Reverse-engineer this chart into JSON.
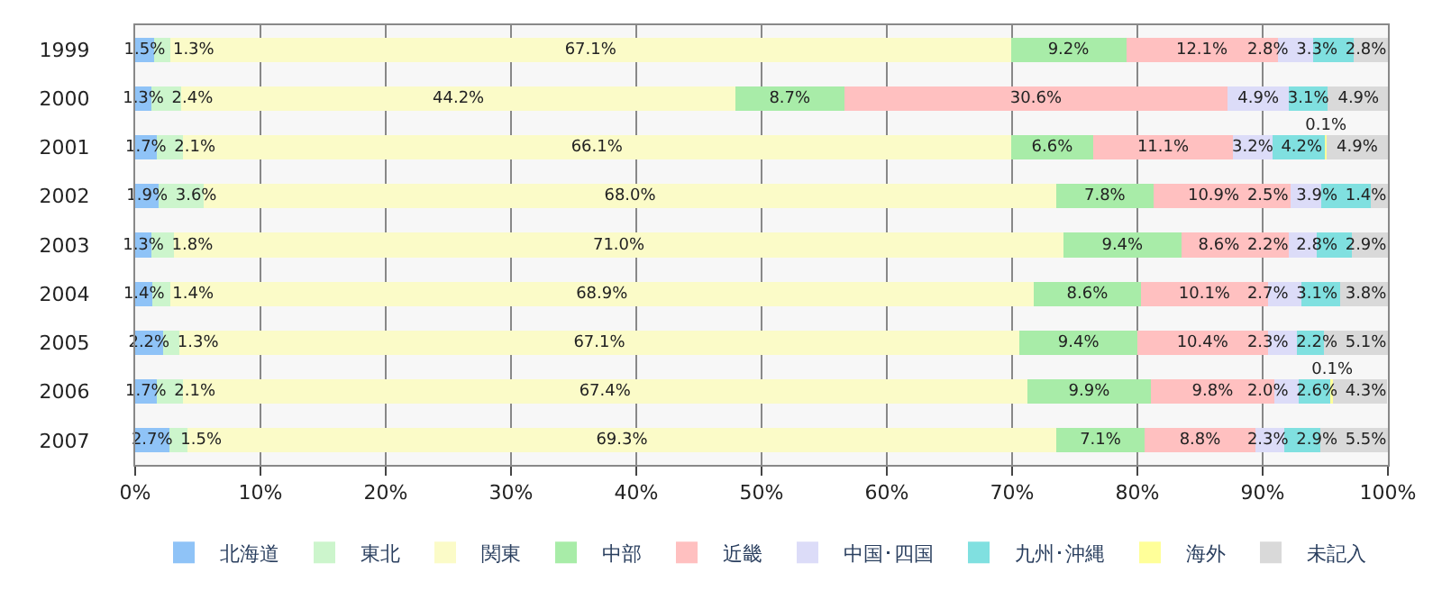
{
  "chart_data": {
    "type": "bar",
    "orientation": "horizontal",
    "stacked": true,
    "categories": [
      "1999",
      "2000",
      "2001",
      "2002",
      "2003",
      "2004",
      "2005",
      "2006",
      "2007"
    ],
    "series": [
      {
        "name": "北海道",
        "color": "#8fc3f7",
        "values": [
          1.5,
          1.3,
          1.7,
          1.9,
          1.3,
          1.4,
          2.2,
          1.7,
          2.7
        ],
        "value_labels": [
          "1.5%",
          "1.3%",
          "1.7%",
          "1.9%",
          "1.3%",
          "1.4%",
          "2.2%",
          "1.7%",
          "2.7%"
        ]
      },
      {
        "name": "東北",
        "color": "#ccf5cc",
        "values": [
          1.3,
          2.4,
          2.1,
          3.6,
          1.8,
          1.4,
          1.3,
          2.1,
          1.5
        ],
        "value_labels": [
          "1.3%",
          "2.4%",
          "2.1%",
          "3.6%",
          "1.8%",
          "1.4%",
          "1.3%",
          "2.1%",
          "1.5%"
        ]
      },
      {
        "name": "関東",
        "color": "#fbfbc8",
        "values": [
          67.1,
          44.2,
          66.1,
          68.0,
          71.0,
          68.9,
          67.1,
          67.4,
          69.3
        ],
        "value_labels": [
          "67.1%",
          "44.2%",
          "66.1%",
          "68.0%",
          "71.0%",
          "68.9%",
          "67.1%",
          "67.4%",
          "69.3%"
        ]
      },
      {
        "name": "中部",
        "color": "#a8eca8",
        "values": [
          9.2,
          8.7,
          6.6,
          7.8,
          9.4,
          8.6,
          9.4,
          9.9,
          7.1
        ],
        "value_labels": [
          "9.2%",
          "8.7%",
          "6.6%",
          "7.8%",
          "9.4%",
          "8.6%",
          "9.4%",
          "9.9%",
          "7.1%"
        ]
      },
      {
        "name": "近畿",
        "color": "#ffc0c0",
        "values": [
          12.1,
          30.6,
          11.1,
          10.9,
          8.6,
          10.1,
          10.4,
          9.8,
          8.8
        ],
        "value_labels": [
          "12.1%",
          "30.6%",
          "11.1%",
          "10.9%",
          "8.6%",
          "10.1%",
          "10.4%",
          "9.8%",
          "8.8%"
        ]
      },
      {
        "name": "中国･四国",
        "color": "#dcdcf8",
        "values": [
          2.8,
          4.9,
          3.2,
          2.5,
          2.2,
          2.7,
          2.3,
          2.0,
          2.3
        ],
        "value_labels": [
          "2.8%",
          "4.9%",
          "3.2%",
          "2.5%",
          "2.2%",
          "2.7%",
          "2.3%",
          "2.0%",
          "2.3%"
        ]
      },
      {
        "name": "九州･沖縄",
        "color": "#80e0e0",
        "values": [
          3.3,
          3.1,
          4.2,
          3.9,
          2.8,
          3.1,
          2.2,
          2.6,
          2.9
        ],
        "value_labels": [
          "3.3%",
          "3.1%",
          "4.2%",
          "3.9%",
          "2.8%",
          "3.1%",
          "2.2%",
          "2.6%",
          "2.9%"
        ]
      },
      {
        "name": "海外",
        "color": "#ffff99",
        "values": [
          null,
          null,
          0.1,
          null,
          null,
          null,
          null,
          0.1,
          null
        ],
        "value_labels": [
          null,
          null,
          "0.1%",
          null,
          null,
          null,
          null,
          "0.1%",
          null
        ]
      },
      {
        "name": "未記入",
        "color": "#d9d9d9",
        "values": [
          2.8,
          4.9,
          4.9,
          1.4,
          2.9,
          3.8,
          5.1,
          4.3,
          5.5
        ],
        "value_labels": [
          "2.8%",
          "4.9%",
          "4.9%",
          "1.4%",
          "2.9%",
          "3.8%",
          "5.1%",
          "4.3%",
          "5.5%"
        ]
      }
    ],
    "xlim": [
      0,
      100
    ],
    "xticks": [
      {
        "value": 0,
        "label": "0%"
      },
      {
        "value": 10,
        "label": "10%"
      },
      {
        "value": 20,
        "label": "20%"
      },
      {
        "value": 30,
        "label": "30%"
      },
      {
        "value": 40,
        "label": "40%"
      },
      {
        "value": 50,
        "label": "50%"
      },
      {
        "value": 60,
        "label": "60%"
      },
      {
        "value": 70,
        "label": "70%"
      },
      {
        "value": 80,
        "label": "80%"
      },
      {
        "value": 90,
        "label": "90%"
      },
      {
        "value": 100,
        "label": "100%"
      }
    ],
    "grid": "x",
    "legend": "bottom"
  }
}
